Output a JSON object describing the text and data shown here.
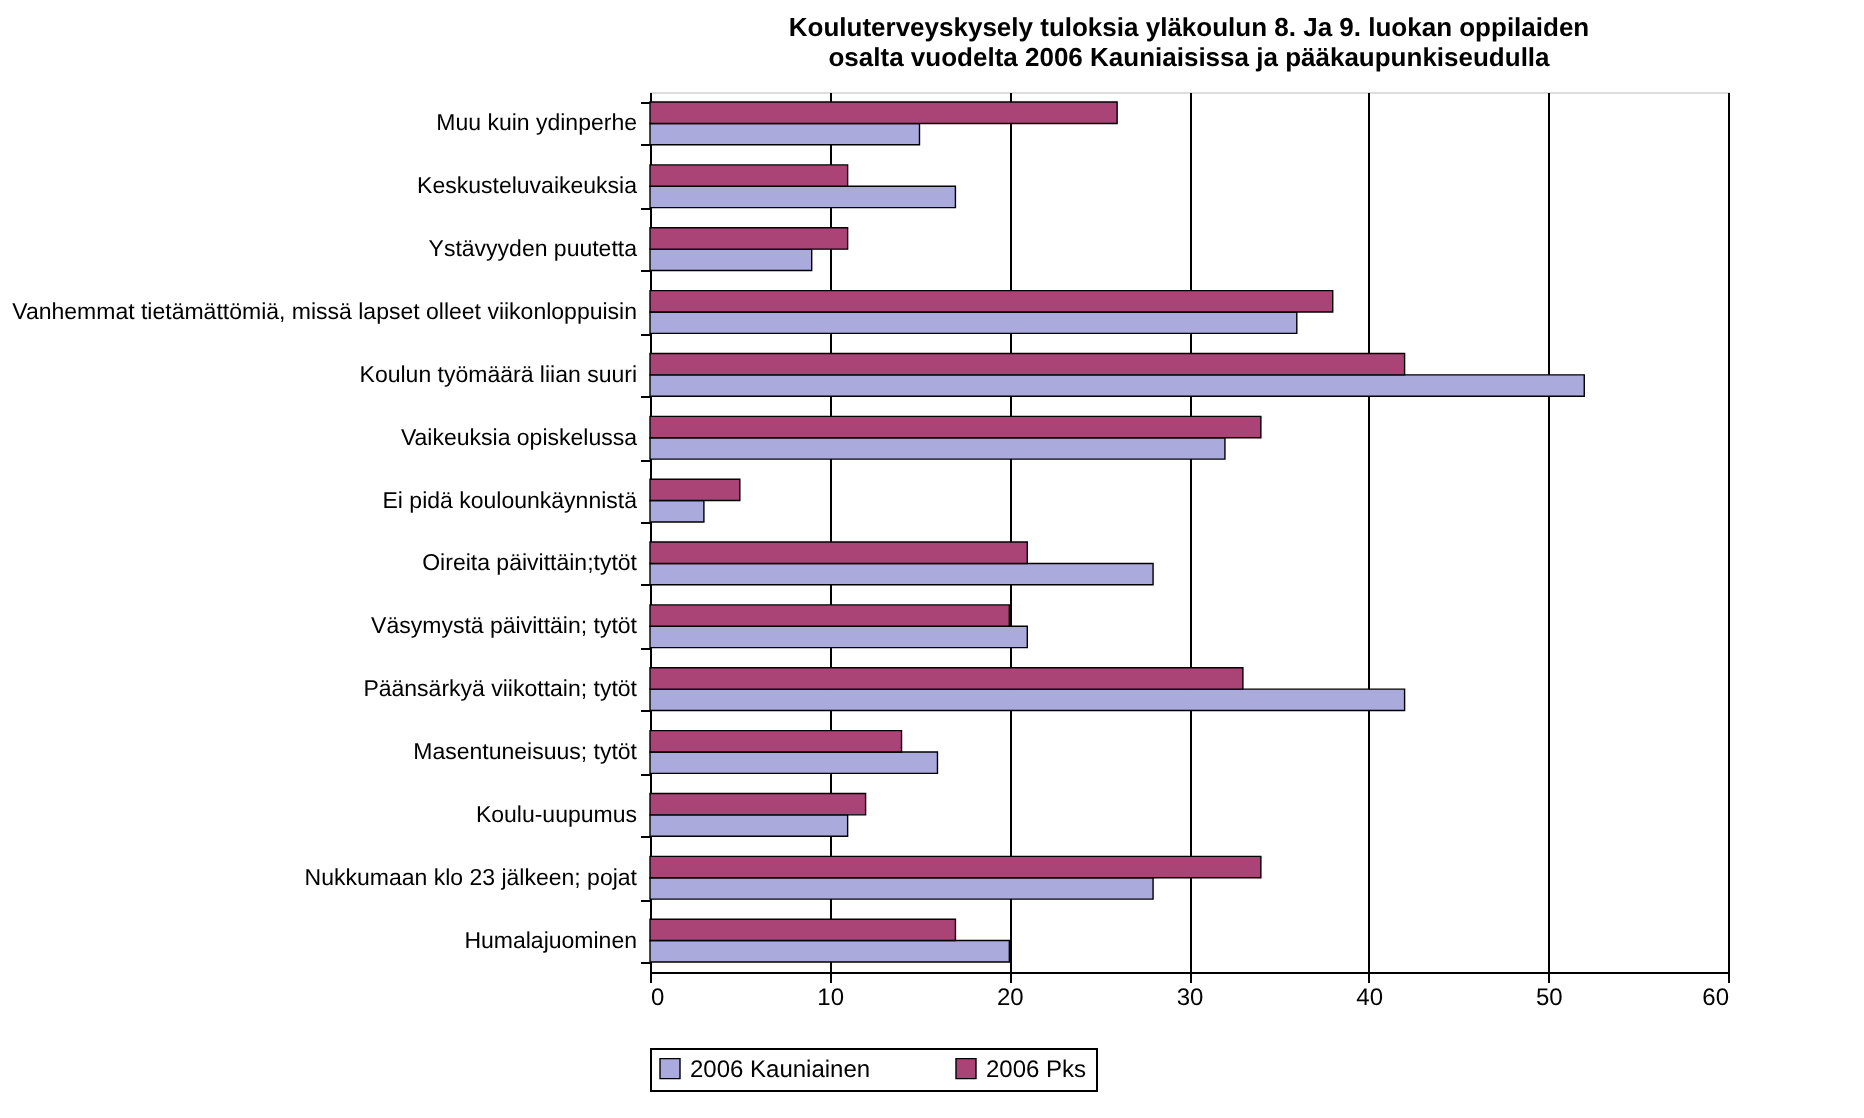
{
  "chart_data": {
    "type": "bar",
    "orientation": "horizontal",
    "title": "Kouluterveyskysely tuloksia yläkoulun 8. Ja 9. luokan oppilaiden osalta vuodelta 2006 Kauniaisissa ja pääkaupunkiseudulla",
    "categories": [
      "Muu kuin ydinperhe",
      "Keskusteluvaikeuksia",
      "Ystävyyden puutetta",
      "Vanhemmat tietämättömiä, missä lapset olleet viikonloppuisin",
      "Koulun työmäärä liian suuri",
      "Vaikeuksia opiskelussa",
      "Ei pidä koulounkäynnistä",
      "Oireita päivittäin;tytöt",
      "Väsymystä päivittäin; tytöt",
      "Päänsärkyä viikottain; tytöt",
      "Masentuneisuus; tytöt",
      "Koulu-uupumus",
      "Nukkumaan klo 23 jälkeen; pojat",
      "Humalajuominen"
    ],
    "series": [
      {
        "name": "2006 Kauniainen",
        "color": "#aaaadd",
        "values": [
          15,
          17,
          9,
          36,
          52,
          32,
          3,
          28,
          21,
          42,
          16,
          11,
          28,
          20
        ]
      },
      {
        "name": "2006 Pks",
        "color": "#aa4477",
        "values": [
          26,
          11,
          11,
          38,
          42,
          34,
          5,
          21,
          20,
          33,
          14,
          12,
          34,
          17
        ]
      }
    ],
    "xlim": [
      0,
      60
    ],
    "xticks": [
      0,
      10,
      20,
      30,
      40,
      50,
      60
    ],
    "grid": "x",
    "legend": "bottom"
  }
}
